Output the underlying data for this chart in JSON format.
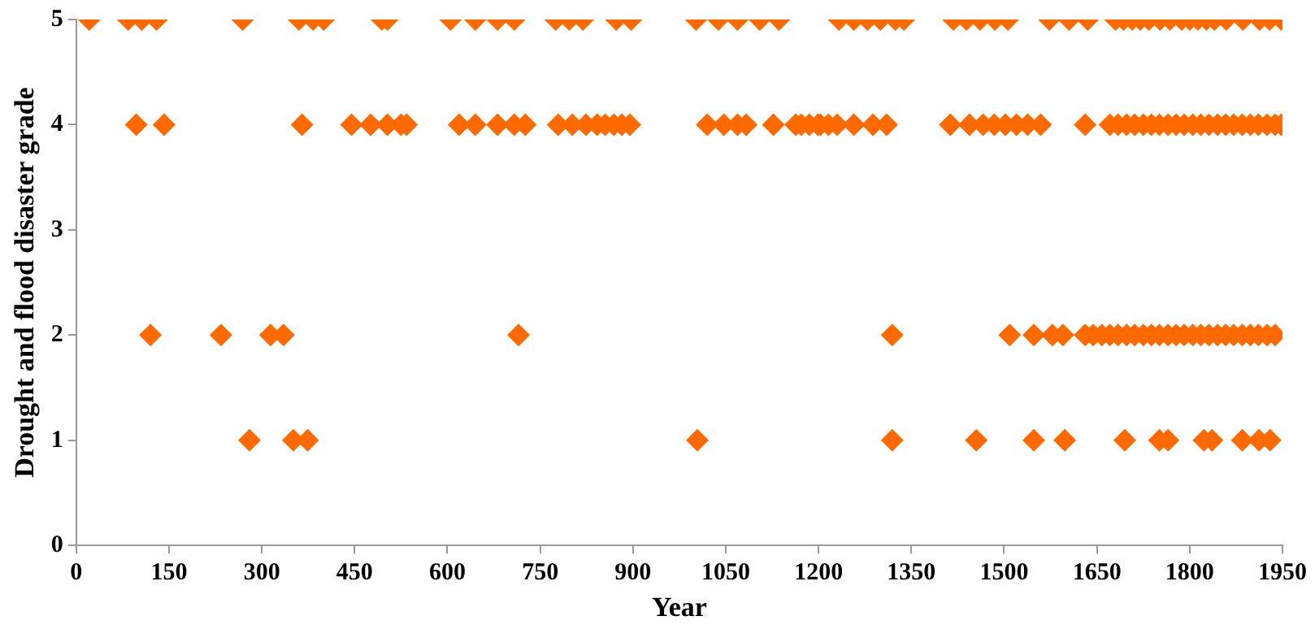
{
  "chart_data": {
    "type": "scatter",
    "xlabel": "Year",
    "ylabel": "Drought and flood disaster grade",
    "marker": "diamond",
    "grid": false,
    "legend": false,
    "xlim": [
      0,
      1950
    ],
    "xticks": [
      0,
      150,
      300,
      450,
      600,
      750,
      900,
      1050,
      1200,
      1350,
      1500,
      1650,
      1800,
      1950
    ],
    "ylim": [
      0,
      5
    ],
    "yticks": [
      0,
      1,
      2,
      3,
      4,
      5
    ],
    "series": [
      {
        "color": "#ff6a00",
        "x": [
          21,
          84,
          106,
          130,
          269,
          360,
          383,
          400,
          494,
          503,
          605,
          645,
          681,
          708,
          775,
          797,
          819,
          873,
          897,
          1002,
          1038,
          1069,
          1105,
          1136,
          1233,
          1257,
          1279,
          1300,
          1324,
          1338,
          1418,
          1439,
          1461,
          1485,
          1506,
          1573,
          1605,
          1635,
          1680,
          1693,
          1707,
          1720,
          1734,
          1752,
          1768,
          1787,
          1800,
          1813,
          1827,
          1840,
          1859,
          1886,
          1913,
          1929,
          1948
        ],
        "values": [
          5,
          5,
          5,
          5,
          5,
          5,
          5,
          5,
          5,
          5,
          5,
          5,
          5,
          5,
          5,
          5,
          5,
          5,
          5,
          5,
          5,
          5,
          5,
          5,
          5,
          5,
          5,
          5,
          5,
          5,
          5,
          5,
          5,
          5,
          5,
          5,
          5,
          5,
          5,
          5,
          5,
          5,
          5,
          5,
          5,
          5,
          5,
          5,
          5,
          5,
          5,
          5,
          5,
          5,
          5
        ]
      },
      {
        "color": "#ff6a00",
        "x": [
          97,
          142,
          365,
          445,
          476,
          503,
          525,
          534,
          619,
          645,
          681,
          708,
          726,
          779,
          802,
          824,
          842,
          855,
          869,
          882,
          895,
          1020,
          1047,
          1069,
          1083,
          1127,
          1172,
          1199,
          1163,
          1185,
          1203,
          1216,
          1230,
          1257,
          1288,
          1310,
          1413,
          1444,
          1466,
          1484,
          1502,
          1520,
          1538,
          1559,
          1631,
          1671,
          1684,
          1698,
          1711,
          1725,
          1738,
          1751,
          1765,
          1778,
          1791,
          1805,
          1818,
          1831,
          1845,
          1858,
          1871,
          1885,
          1898,
          1911,
          1925,
          1938,
          1948
        ],
        "values": [
          4,
          4,
          4,
          4,
          4,
          4,
          4,
          4,
          4,
          4,
          4,
          4,
          4,
          4,
          4,
          4,
          4,
          4,
          4,
          4,
          4,
          4,
          4,
          4,
          4,
          4,
          4,
          4,
          4,
          4,
          4,
          4,
          4,
          4,
          4,
          4,
          4,
          4,
          4,
          4,
          4,
          4,
          4,
          4,
          4,
          4,
          4,
          4,
          4,
          4,
          4,
          4,
          4,
          4,
          4,
          4,
          4,
          4,
          4,
          4,
          4,
          4,
          4,
          4,
          4,
          4,
          4
        ]
      },
      {
        "color": "#ff6a00",
        "x": [
          120,
          234,
          314,
          335,
          715,
          1319,
          1509,
          1548,
          1578,
          1595,
          1631,
          1644,
          1658,
          1671,
          1684,
          1698,
          1711,
          1725,
          1738,
          1751,
          1765,
          1778,
          1791,
          1805,
          1818,
          1831,
          1845,
          1858,
          1871,
          1885,
          1898,
          1911,
          1925,
          1938
        ],
        "values": [
          2,
          2,
          2,
          2,
          2,
          2,
          2,
          2,
          2,
          2,
          2,
          2,
          2,
          2,
          2,
          2,
          2,
          2,
          2,
          2,
          2,
          2,
          2,
          2,
          2,
          2,
          2,
          2,
          2,
          2,
          2,
          2,
          2,
          2
        ]
      },
      {
        "color": "#ff6a00",
        "x": [
          280,
          351,
          374,
          1004,
          1319,
          1455,
          1548,
          1598,
          1695,
          1751,
          1765,
          1823,
          1836,
          1885,
          1912,
          1930
        ],
        "values": [
          1,
          1,
          1,
          1,
          1,
          1,
          1,
          1,
          1,
          1,
          1,
          1,
          1,
          1,
          1,
          1
        ]
      }
    ]
  }
}
